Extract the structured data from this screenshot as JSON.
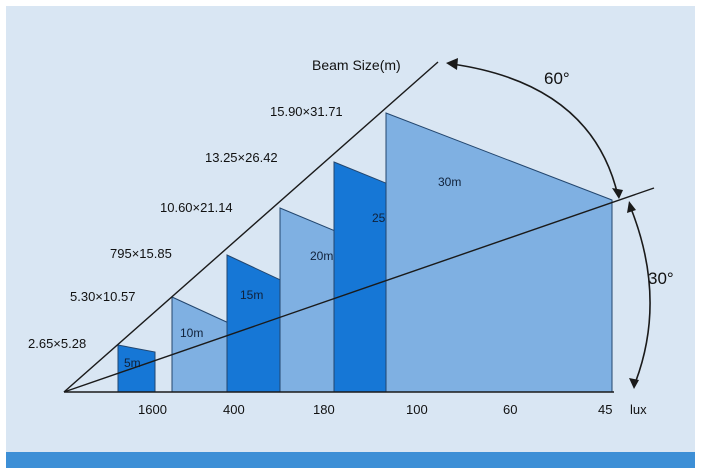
{
  "beam_size_label": "Beam Size(m)",
  "angle_horizontal": "60°",
  "angle_vertical": "30°",
  "lux_unit": "lux",
  "colors": {
    "background": "#d9e6f3",
    "footer_bar": "#3d8fd6",
    "panel_light": "#7fb0e2",
    "panel_dark": "#1677d6",
    "panel_edge": "#23466e",
    "lines": "#1a1a1a"
  },
  "panels": [
    {
      "distance": "5m",
      "beam_size": "2.65×5.28",
      "lux": "1600",
      "shade": "dark"
    },
    {
      "distance": "10m",
      "beam_size": "5.30×10.57",
      "lux": "400",
      "shade": "light"
    },
    {
      "distance": "15m",
      "beam_size": "795×15.85",
      "lux": "180",
      "shade": "dark"
    },
    {
      "distance": "20m",
      "beam_size": "10.60×21.14",
      "lux": "100",
      "shade": "light"
    },
    {
      "distance": "25m",
      "beam_size": "13.25×26.42",
      "lux": "60",
      "shade": "dark"
    },
    {
      "distance": "30m",
      "beam_size": "15.90×31.71",
      "lux": "45",
      "shade": "light"
    }
  ]
}
